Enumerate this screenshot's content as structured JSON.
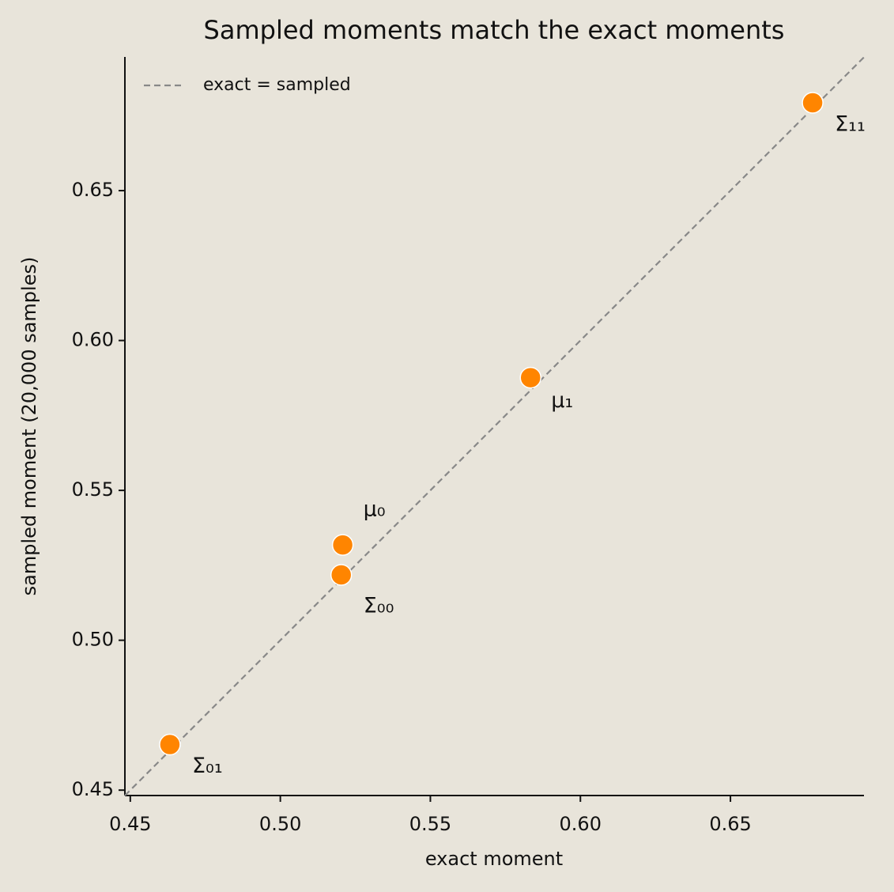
{
  "chart_data": {
    "type": "scatter",
    "title": "Sampled moments match the exact moments",
    "x_label": "exact moment",
    "y_label": "sampled moment (20,000 samples)",
    "x": [
      0.6774,
      0.5834,
      0.5208,
      0.5203,
      0.4632
    ],
    "values": [
      0.6793,
      0.5876,
      0.5318,
      0.5218,
      0.4652
    ],
    "point_labels": [
      "Σ₁₁",
      "μ₁",
      "μ₀",
      "Σ₀₀",
      "Σ₀₁"
    ],
    "color": "#ff8500",
    "reference_line": {
      "name": "exact = sampled",
      "color": "#888888"
    },
    "legend": "upper left",
    "xlim": [
      0.4482,
      0.6945
    ],
    "ylim": [
      0.4482,
      0.6946
    ],
    "xticks": [
      0.45,
      {
        "value": 0.5,
        "label": "0.50"
      },
      0.55,
      {
        "value": 0.6,
        "label": "0.60"
      },
      0.65
    ],
    "yticks": [
      0.45,
      {
        "value": 0.5,
        "label": "0.50"
      },
      0.55,
      {
        "value": 0.6,
        "label": "0.60"
      },
      0.65
    ]
  }
}
